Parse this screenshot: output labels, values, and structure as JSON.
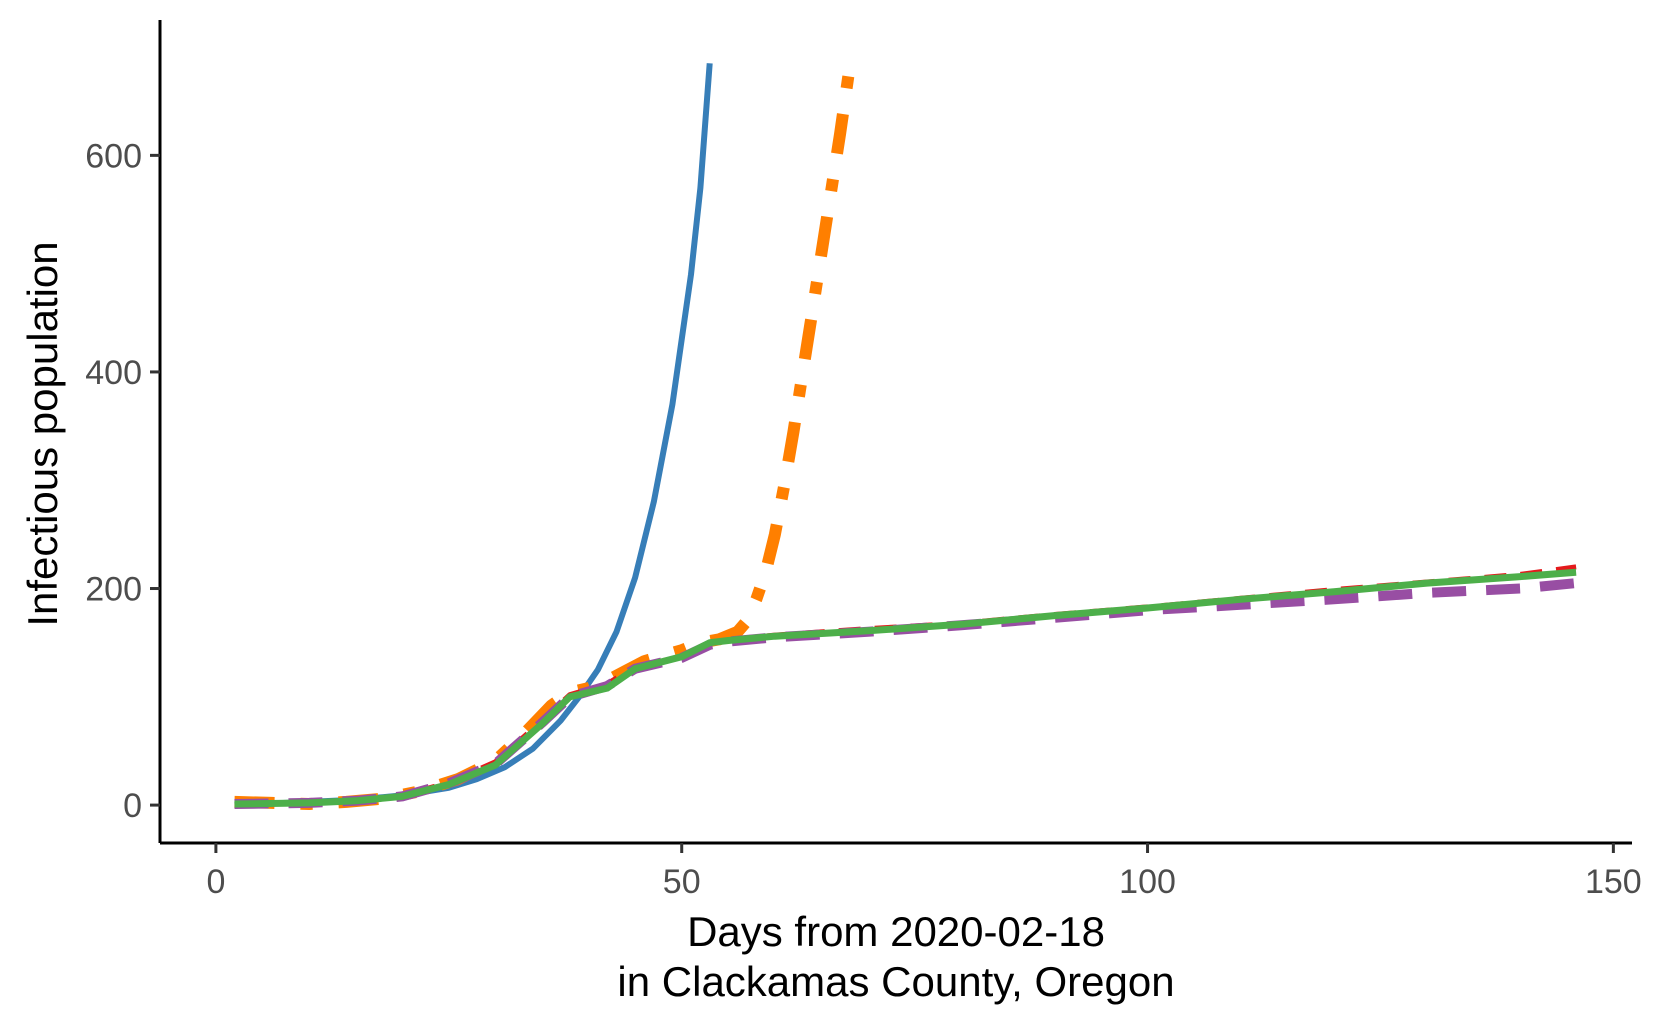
{
  "chart_data": {
    "type": "line",
    "title": "",
    "xlabel_lines": [
      "Days from 2020-02-18",
      "in Clackamas County, Oregon"
    ],
    "ylabel": "Infectious population",
    "xlim": [
      -6,
      152
    ],
    "ylim": [
      -35,
      725
    ],
    "x_ticks": [
      0,
      50,
      100,
      150
    ],
    "y_ticks": [
      0,
      200,
      400,
      600
    ],
    "grid": false,
    "legend": "none",
    "series": [
      {
        "color": "#377EB8",
        "dash": "solid",
        "width": 6,
        "points": [
          [
            2,
            0
          ],
          [
            10,
            3
          ],
          [
            15,
            5
          ],
          [
            20,
            9
          ],
          [
            25,
            16
          ],
          [
            28,
            24
          ],
          [
            31,
            35
          ],
          [
            34,
            52
          ],
          [
            37,
            78
          ],
          [
            39,
            100
          ],
          [
            41,
            125
          ],
          [
            43,
            160
          ],
          [
            45,
            210
          ],
          [
            47,
            280
          ],
          [
            49,
            370
          ],
          [
            51,
            490
          ],
          [
            52,
            570
          ],
          [
            53,
            685
          ]
        ]
      },
      {
        "color": "#FF7F00",
        "dash": "dashdot",
        "width": 12,
        "points": [
          [
            2,
            3
          ],
          [
            6,
            2
          ],
          [
            10,
            1
          ],
          [
            14,
            3
          ],
          [
            18,
            6
          ],
          [
            22,
            13
          ],
          [
            26,
            24
          ],
          [
            30,
            41
          ],
          [
            33,
            65
          ],
          [
            36,
            92
          ],
          [
            38,
            104
          ],
          [
            40,
            108
          ],
          [
            42,
            115
          ],
          [
            44,
            124
          ],
          [
            46,
            133
          ],
          [
            48,
            138
          ],
          [
            50,
            143
          ],
          [
            52,
            150
          ],
          [
            54,
            153
          ],
          [
            56,
            160
          ],
          [
            57,
            170
          ],
          [
            58,
            190
          ],
          [
            59,
            215
          ],
          [
            60,
            250
          ],
          [
            61,
            295
          ],
          [
            62,
            345
          ],
          [
            63,
            400
          ],
          [
            64,
            455
          ],
          [
            65,
            510
          ],
          [
            66,
            565
          ],
          [
            67,
            620
          ],
          [
            68,
            680
          ]
        ]
      },
      {
        "color": "#E41A1C",
        "dash": "dashed",
        "width": 5,
        "points": [
          [
            2,
            1
          ],
          [
            10,
            2
          ],
          [
            15,
            4
          ],
          [
            20,
            9
          ],
          [
            25,
            21
          ],
          [
            30,
            40
          ],
          [
            35,
            78
          ],
          [
            38,
            102
          ],
          [
            42,
            112
          ],
          [
            45,
            128
          ],
          [
            50,
            137
          ],
          [
            53,
            150
          ],
          [
            55,
            153
          ],
          [
            60,
            157
          ],
          [
            70,
            163
          ],
          [
            80,
            168
          ],
          [
            90,
            176
          ],
          [
            100,
            183
          ],
          [
            110,
            191
          ],
          [
            120,
            199
          ],
          [
            130,
            206
          ],
          [
            140,
            213
          ],
          [
            146,
            220
          ]
        ]
      },
      {
        "color": "#984EA3",
        "dash": "longdash",
        "width": 10,
        "points": [
          [
            2,
            1
          ],
          [
            10,
            2
          ],
          [
            15,
            4
          ],
          [
            20,
            8
          ],
          [
            25,
            20
          ],
          [
            30,
            38
          ],
          [
            35,
            76
          ],
          [
            38,
            100
          ],
          [
            42,
            110
          ],
          [
            45,
            126
          ],
          [
            50,
            136
          ],
          [
            53,
            148
          ],
          [
            55,
            151
          ],
          [
            60,
            155
          ],
          [
            70,
            160
          ],
          [
            80,
            166
          ],
          [
            90,
            173
          ],
          [
            100,
            180
          ],
          [
            110,
            185
          ],
          [
            120,
            190
          ],
          [
            130,
            196
          ],
          [
            140,
            200
          ],
          [
            146,
            205
          ]
        ]
      },
      {
        "color": "#4DAF4A",
        "dash": "solid",
        "width": 7,
        "points": [
          [
            2,
            1
          ],
          [
            10,
            2
          ],
          [
            15,
            4
          ],
          [
            20,
            8
          ],
          [
            25,
            19
          ],
          [
            30,
            37
          ],
          [
            35,
            75
          ],
          [
            38,
            100
          ],
          [
            42,
            108
          ],
          [
            45,
            126
          ],
          [
            50,
            137
          ],
          [
            53,
            150
          ],
          [
            55,
            152
          ],
          [
            60,
            156
          ],
          [
            70,
            161
          ],
          [
            80,
            167
          ],
          [
            90,
            175
          ],
          [
            100,
            182
          ],
          [
            110,
            190
          ],
          [
            120,
            197
          ],
          [
            130,
            205
          ],
          [
            140,
            211
          ],
          [
            146,
            215
          ]
        ]
      }
    ]
  }
}
